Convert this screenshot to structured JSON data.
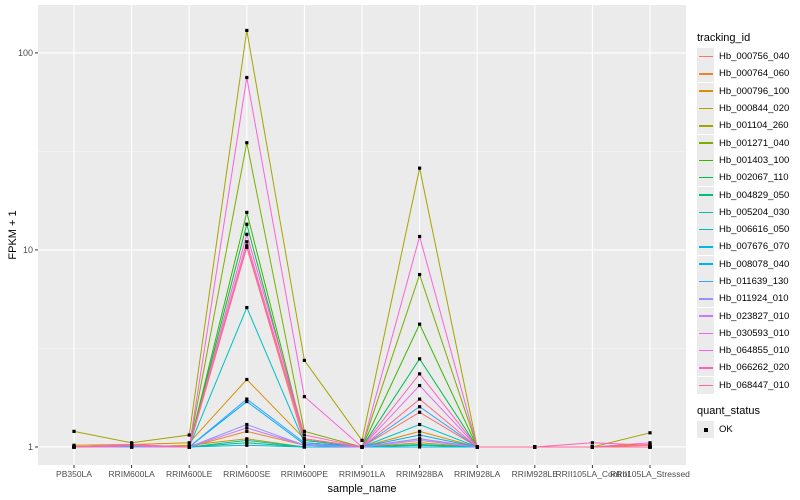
{
  "chart_data": {
    "type": "line",
    "title": "",
    "xlabel": "sample_name",
    "ylabel": "FPKM + 1",
    "y_scale": "log10",
    "ylim": [
      0.81,
      175
    ],
    "yticks": [
      1,
      10,
      100
    ],
    "ytick_labels": [
      "1",
      "10",
      "100"
    ],
    "categories": [
      "PB350LA",
      "RRIM600LA",
      "RRIM600LE",
      "RRIM600SE",
      "RRIM600PE",
      "RRIM901LA",
      "RRIM928BA",
      "RRIM928LA",
      "RRIM928LE",
      "RRII105LA_Control",
      "RRII105LA_Stressed"
    ],
    "legend_title": "tracking_id",
    "legend_position": "right",
    "series": [
      {
        "name": "Hb_000756_040",
        "color": "#F8766D",
        "values": [
          1.0,
          1.02,
          1.0,
          10.3,
          1.05,
          1.0,
          1.5,
          1.0,
          1.0,
          1.0,
          1.02
        ]
      },
      {
        "name": "Hb_000764_060",
        "color": "#EA8331",
        "values": [
          1.0,
          1.01,
          1.0,
          1.2,
          1.02,
          1.0,
          1.1,
          1.0,
          1.0,
          1.0,
          1.0
        ]
      },
      {
        "name": "Hb_000796_100",
        "color": "#D89000",
        "values": [
          1.02,
          1.03,
          1.05,
          2.2,
          1.1,
          1.0,
          1.2,
          1.0,
          1.0,
          1.0,
          1.03
        ]
      },
      {
        "name": "Hb_000844_020",
        "color": "#C09B00",
        "values": [
          1.0,
          1.0,
          1.02,
          1.1,
          1.0,
          1.0,
          1.05,
          1.0,
          1.0,
          1.0,
          1.0
        ]
      },
      {
        "name": "Hb_001104_260",
        "color": "#A3A500",
        "values": [
          1.2,
          1.05,
          1.15,
          130,
          2.75,
          1.08,
          26,
          1.0,
          1.0,
          1.0,
          1.18
        ]
      },
      {
        "name": "Hb_001271_040",
        "color": "#7CAE00",
        "values": [
          1.0,
          1.02,
          1.0,
          35,
          1.2,
          1.0,
          7.5,
          1.0,
          1.0,
          1.0,
          1.0
        ]
      },
      {
        "name": "Hb_001403_100",
        "color": "#39B600",
        "values": [
          1.0,
          1.0,
          1.0,
          15.5,
          1.1,
          1.0,
          4.2,
          1.0,
          1.0,
          1.0,
          1.0
        ]
      },
      {
        "name": "Hb_002067_110",
        "color": "#00BB4E",
        "values": [
          1.0,
          1.0,
          1.0,
          13.5,
          1.08,
          1.0,
          2.8,
          1.0,
          1.0,
          1.0,
          1.0
        ]
      },
      {
        "name": "Hb_004829_050",
        "color": "#00BF7D",
        "values": [
          1.0,
          1.0,
          1.0,
          1.05,
          1.0,
          1.0,
          1.03,
          1.0,
          1.0,
          1.0,
          1.0
        ]
      },
      {
        "name": "Hb_005204_030",
        "color": "#00C1A3",
        "values": [
          1.0,
          1.0,
          1.0,
          1.08,
          1.0,
          1.0,
          1.02,
          1.0,
          1.0,
          1.0,
          1.0
        ]
      },
      {
        "name": "Hb_006616_050",
        "color": "#00BFC4",
        "values": [
          1.0,
          1.01,
          1.0,
          5.1,
          1.05,
          1.0,
          1.3,
          1.0,
          1.0,
          1.0,
          1.0
        ]
      },
      {
        "name": "Hb_007676_070",
        "color": "#00BAE0",
        "values": [
          1.0,
          1.0,
          1.0,
          1.02,
          1.0,
          1.0,
          1.0,
          1.0,
          1.0,
          1.0,
          1.0
        ]
      },
      {
        "name": "Hb_008078_040",
        "color": "#00B0F6",
        "values": [
          1.0,
          1.0,
          1.0,
          1.7,
          1.03,
          1.0,
          1.15,
          1.0,
          1.0,
          1.0,
          1.0
        ]
      },
      {
        "name": "Hb_011639_130",
        "color": "#35A2FF",
        "values": [
          1.0,
          1.0,
          1.0,
          1.75,
          1.05,
          1.0,
          1.6,
          1.0,
          1.0,
          1.0,
          1.0
        ]
      },
      {
        "name": "Hb_011924_010",
        "color": "#9590FF",
        "values": [
          1.0,
          1.0,
          1.0,
          1.3,
          1.02,
          1.0,
          1.1,
          1.0,
          1.0,
          1.0,
          1.0
        ]
      },
      {
        "name": "Hb_023827_010",
        "color": "#C77CFF",
        "values": [
          1.0,
          1.0,
          1.0,
          1.25,
          1.02,
          1.0,
          1.08,
          1.0,
          1.0,
          1.0,
          1.0
        ]
      },
      {
        "name": "Hb_030593_010",
        "color": "#E76BF3",
        "values": [
          1.0,
          1.02,
          1.0,
          11,
          1.1,
          1.0,
          2.05,
          1.0,
          1.0,
          1.0,
          1.0
        ]
      },
      {
        "name": "Hb_064855_010",
        "color": "#FA62DB",
        "values": [
          1.0,
          1.03,
          1.0,
          75,
          1.8,
          1.0,
          11.7,
          1.0,
          1.0,
          1.0,
          1.05
        ]
      },
      {
        "name": "Hb_066262_020",
        "color": "#FF62BC",
        "values": [
          1.0,
          1.02,
          1.0,
          12,
          1.15,
          1.0,
          2.35,
          1.0,
          1.0,
          1.05,
          1.02
        ]
      },
      {
        "name": "Hb_068447_010",
        "color": "#FF6C91",
        "values": [
          1.0,
          1.02,
          1.0,
          10.5,
          1.1,
          1.0,
          1.75,
          1.0,
          1.0,
          1.0,
          1.0
        ]
      }
    ],
    "shape_legend": {
      "title": "quant_status",
      "items": [
        "OK"
      ]
    }
  }
}
